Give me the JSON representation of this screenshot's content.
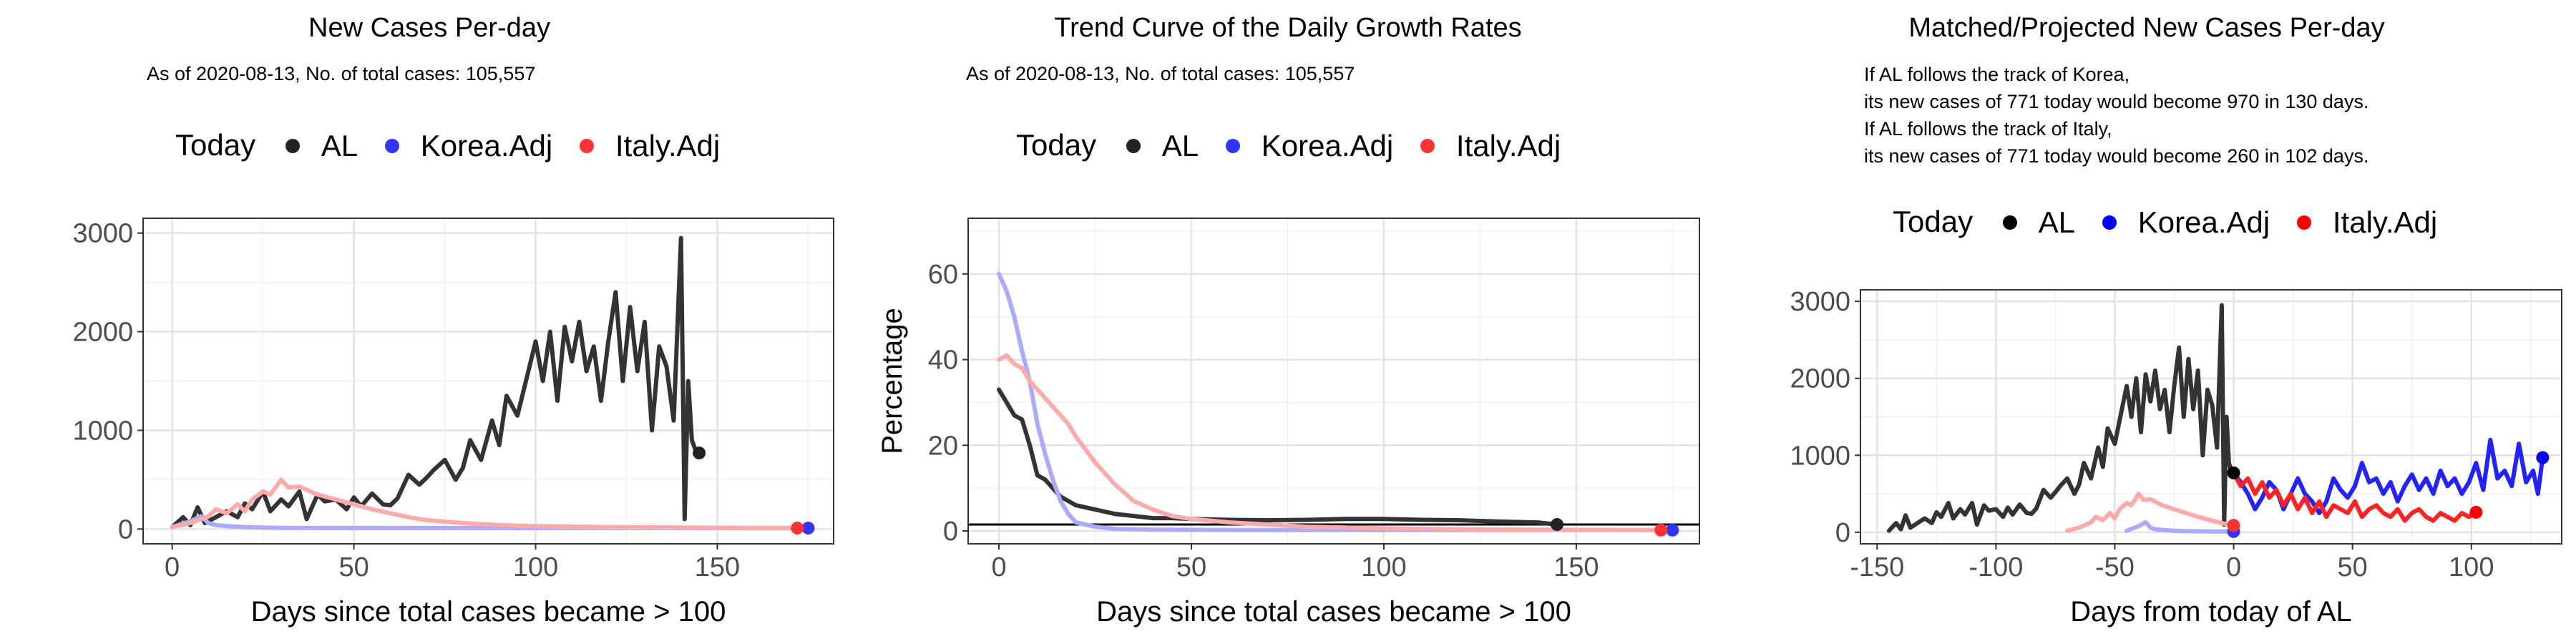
{
  "chart_data": [
    {
      "type": "line",
      "title": "New Cases Per-day",
      "subtitle": "As of 2020-08-13, No. of total cases: 105,557",
      "xlabel": "Days since total cases became > 100",
      "ylabel": "",
      "xlim": [
        -8,
        182
      ],
      "ylim": [
        -150,
        3150
      ],
      "xticks": [
        0,
        50,
        100,
        150
      ],
      "yticks": [
        0,
        1000,
        2000,
        3000
      ],
      "grid": true,
      "legend": {
        "title": "Today",
        "position": "top",
        "entries": [
          "AL",
          "Korea.Adj",
          "Italy.Adj"
        ]
      },
      "series": [
        {
          "name": "AL",
          "color": "#333333",
          "endpoint_color": "#222222",
          "x": [
            0,
            3,
            5,
            7,
            9,
            12,
            15,
            18,
            20,
            22,
            25,
            27,
            30,
            32,
            35,
            37,
            40,
            42,
            45,
            48,
            50,
            52,
            55,
            58,
            60,
            62,
            65,
            68,
            70,
            72,
            75,
            78,
            80,
            82,
            85,
            88,
            90,
            92,
            95,
            98,
            100,
            102,
            104,
            106,
            108,
            110,
            112,
            114,
            116,
            118,
            120,
            122,
            124,
            126,
            128,
            130,
            132,
            134,
            136,
            138,
            140,
            141,
            142,
            143,
            144,
            145
          ],
          "y": [
            20,
            120,
            40,
            220,
            60,
            120,
            180,
            120,
            260,
            200,
            380,
            180,
            300,
            230,
            380,
            100,
            350,
            280,
            300,
            200,
            320,
            230,
            360,
            250,
            240,
            310,
            550,
            450,
            520,
            600,
            700,
            500,
            620,
            900,
            700,
            1100,
            850,
            1350,
            1150,
            1600,
            1900,
            1500,
            2000,
            1300,
            2050,
            1700,
            2100,
            1600,
            1850,
            1300,
            1900,
            2400,
            1500,
            2250,
            1600,
            2100,
            1000,
            1850,
            1650,
            1100,
            2950,
            100,
            1500,
            900,
            800,
            771
          ]
        },
        {
          "name": "Korea.Adj",
          "color": "#aaaaff",
          "endpoint_color": "#3333ff",
          "x": [
            0,
            5,
            8,
            10,
            12,
            15,
            20,
            25,
            30,
            40,
            50,
            60,
            80,
            100,
            120,
            140,
            160,
            175
          ],
          "y": [
            20,
            80,
            130,
            60,
            40,
            30,
            20,
            15,
            12,
            10,
            10,
            10,
            10,
            10,
            10,
            10,
            10,
            10
          ]
        },
        {
          "name": "Italy.Adj",
          "color": "#ffaaaa",
          "endpoint_color": "#ff3333",
          "x": [
            0,
            5,
            10,
            12,
            15,
            18,
            20,
            22,
            25,
            27,
            30,
            32,
            35,
            38,
            40,
            45,
            50,
            55,
            60,
            65,
            70,
            80,
            90,
            100,
            120,
            140,
            160,
            172
          ],
          "y": [
            20,
            60,
            130,
            200,
            160,
            250,
            180,
            300,
            380,
            350,
            500,
            420,
            430,
            380,
            350,
            300,
            250,
            200,
            160,
            120,
            90,
            60,
            40,
            30,
            20,
            15,
            10,
            10
          ]
        }
      ]
    },
    {
      "type": "line",
      "title": "Trend Curve of the Daily Growth Rates",
      "subtitle": "As of 2020-08-13, No. of total cases: 105,557",
      "xlabel": "Days since total cases became > 100",
      "ylabel": "Percentage",
      "xlim": [
        -8,
        182
      ],
      "ylim": [
        -3,
        73
      ],
      "xticks": [
        0,
        50,
        100,
        150
      ],
      "yticks": [
        0,
        20,
        40,
        60
      ],
      "reference_line_y": 1.5,
      "grid": true,
      "legend": {
        "title": "Today",
        "position": "top",
        "entries": [
          "AL",
          "Korea.Adj",
          "Italy.Adj"
        ]
      },
      "series": [
        {
          "name": "AL",
          "color": "#333333",
          "endpoint_color": "#222222",
          "x": [
            0,
            2,
            4,
            6,
            8,
            10,
            12,
            14,
            16,
            18,
            20,
            25,
            30,
            35,
            40,
            45,
            50,
            60,
            70,
            80,
            90,
            100,
            110,
            120,
            130,
            140,
            145
          ],
          "y": [
            33,
            30,
            27,
            26,
            20,
            13,
            12,
            10,
            8,
            7,
            6,
            5,
            4,
            3.5,
            3,
            3,
            2.8,
            2.6,
            2.5,
            2.6,
            2.8,
            2.8,
            2.6,
            2.5,
            2.2,
            2,
            1.5
          ]
        },
        {
          "name": "Korea.Adj",
          "color": "#aaaaff",
          "endpoint_color": "#3333ff",
          "x": [
            0,
            2,
            4,
            6,
            8,
            10,
            12,
            14,
            16,
            18,
            20,
            25,
            30,
            40,
            60,
            80,
            100,
            120,
            140,
            160,
            175
          ],
          "y": [
            60,
            56,
            50,
            42,
            35,
            25,
            18,
            12,
            7,
            4,
            2,
            1,
            0.5,
            0.3,
            0.2,
            0.2,
            0.2,
            0.2,
            0.2,
            0.2,
            0.2
          ]
        },
        {
          "name": "Italy.Adj",
          "color": "#ffaaaa",
          "endpoint_color": "#ff3333",
          "x": [
            0,
            2,
            4,
            6,
            8,
            10,
            12,
            15,
            18,
            20,
            25,
            30,
            35,
            40,
            45,
            50,
            60,
            70,
            80,
            100,
            120,
            140,
            160,
            172
          ],
          "y": [
            40,
            41,
            39,
            38,
            35,
            33,
            31,
            28,
            25,
            22,
            16,
            11,
            7,
            5,
            3.5,
            2.8,
            2,
            1.5,
            1,
            0.6,
            0.4,
            0.3,
            0.2,
            0.2
          ]
        }
      ]
    },
    {
      "type": "line",
      "title": "Matched/Projected New Cases Per-day",
      "annotation": [
        "If AL follows the track of Korea,",
        "its new cases of 771 today would become 970 in 130 days.",
        "If AL follows the track of Italy,",
        "its new cases of 771 today would become 260 in 102 days."
      ],
      "xlabel": "Days from today of AL",
      "ylabel": "",
      "xlim": [
        -157,
        138
      ],
      "ylim": [
        -150,
        3150
      ],
      "xticks": [
        -150,
        -100,
        -50,
        0,
        50,
        100
      ],
      "yticks": [
        0,
        1000,
        2000,
        3000
      ],
      "grid": true,
      "legend": {
        "title": "Today",
        "position": "top",
        "entries": [
          "AL",
          "Korea.Adj",
          "Italy.Adj"
        ]
      },
      "series": [
        {
          "name": "AL",
          "color": "#333333",
          "endpoint_color": "#000000",
          "x": [
            -145,
            -142,
            -140,
            -138,
            -136,
            -133,
            -130,
            -127,
            -125,
            -123,
            -120,
            -118,
            -115,
            -113,
            -110,
            -108,
            -105,
            -103,
            -100,
            -97,
            -95,
            -93,
            -90,
            -87,
            -85,
            -83,
            -80,
            -77,
            -75,
            -73,
            -70,
            -67,
            -65,
            -63,
            -60,
            -57,
            -55,
            -53,
            -50,
            -47,
            -45,
            -43,
            -41,
            -39,
            -37,
            -35,
            -33,
            -31,
            -29,
            -27,
            -25,
            -23,
            -21,
            -19,
            -17,
            -15,
            -13,
            -11,
            -9,
            -7,
            -5,
            -4,
            -3,
            -2,
            -1,
            0
          ],
          "y": [
            20,
            120,
            40,
            220,
            60,
            120,
            180,
            120,
            260,
            200,
            380,
            180,
            300,
            230,
            380,
            100,
            350,
            280,
            300,
            200,
            320,
            230,
            360,
            250,
            240,
            310,
            550,
            450,
            520,
            600,
            700,
            500,
            620,
            900,
            700,
            1100,
            850,
            1350,
            1150,
            1600,
            1900,
            1500,
            2000,
            1300,
            2050,
            1700,
            2100,
            1600,
            1850,
            1300,
            1900,
            2400,
            1500,
            2250,
            1600,
            2100,
            1000,
            1850,
            1650,
            1100,
            2950,
            100,
            1500,
            900,
            800,
            771
          ]
        },
        {
          "name": "Korea.Adj",
          "color": "#aaaaff",
          "endpoint_color": "#3333ff",
          "x": [
            -45,
            -40,
            -37,
            -35,
            -33,
            -30,
            -25,
            -20,
            -15,
            -10,
            -5,
            0
          ],
          "y": [
            20,
            80,
            130,
            60,
            40,
            30,
            20,
            15,
            12,
            10,
            10,
            10
          ]
        },
        {
          "name": "Korea.Adj projected",
          "color": "#2222ff",
          "endpoint_color": "#0000ff",
          "x": [
            0,
            3,
            6,
            9,
            12,
            15,
            18,
            21,
            24,
            27,
            30,
            33,
            36,
            39,
            42,
            45,
            48,
            51,
            54,
            57,
            60,
            63,
            66,
            69,
            72,
            75,
            78,
            81,
            84,
            87,
            90,
            93,
            96,
            99,
            102,
            105,
            108,
            111,
            114,
            117,
            120,
            123,
            126,
            128,
            130
          ],
          "y": [
            771,
            650,
            500,
            300,
            450,
            650,
            550,
            300,
            500,
            700,
            500,
            400,
            250,
            400,
            700,
            550,
            450,
            600,
            900,
            650,
            700,
            500,
            650,
            400,
            600,
            750,
            550,
            700,
            500,
            800,
            600,
            700,
            500,
            650,
            900,
            550,
            1200,
            700,
            800,
            600,
            1150,
            650,
            800,
            500,
            970
          ]
        },
        {
          "name": "Italy.Adj",
          "color": "#ffaaaa",
          "endpoint_color": "#ff3333",
          "x": [
            -70,
            -65,
            -60,
            -58,
            -55,
            -52,
            -50,
            -48,
            -45,
            -43,
            -40,
            -38,
            -35,
            -32,
            -30,
            -25,
            -20,
            -15,
            -10,
            -5,
            0
          ],
          "y": [
            20,
            60,
            130,
            200,
            160,
            250,
            180,
            300,
            380,
            350,
            500,
            420,
            430,
            380,
            350,
            300,
            250,
            200,
            160,
            120,
            90
          ]
        },
        {
          "name": "Italy.Adj projected",
          "color": "#ff2222",
          "endpoint_color": "#ff0000",
          "x": [
            0,
            3,
            6,
            9,
            12,
            15,
            18,
            21,
            24,
            27,
            30,
            33,
            36,
            39,
            42,
            45,
            48,
            51,
            54,
            57,
            60,
            63,
            66,
            69,
            72,
            75,
            78,
            81,
            84,
            87,
            90,
            93,
            96,
            99,
            102
          ],
          "y": [
            771,
            600,
            700,
            500,
            650,
            450,
            550,
            350,
            500,
            300,
            450,
            250,
            400,
            200,
            350,
            300,
            250,
            400,
            200,
            300,
            350,
            250,
            200,
            300,
            150,
            250,
            300,
            200,
            150,
            250,
            200,
            150,
            250,
            200,
            260
          ]
        }
      ]
    }
  ]
}
